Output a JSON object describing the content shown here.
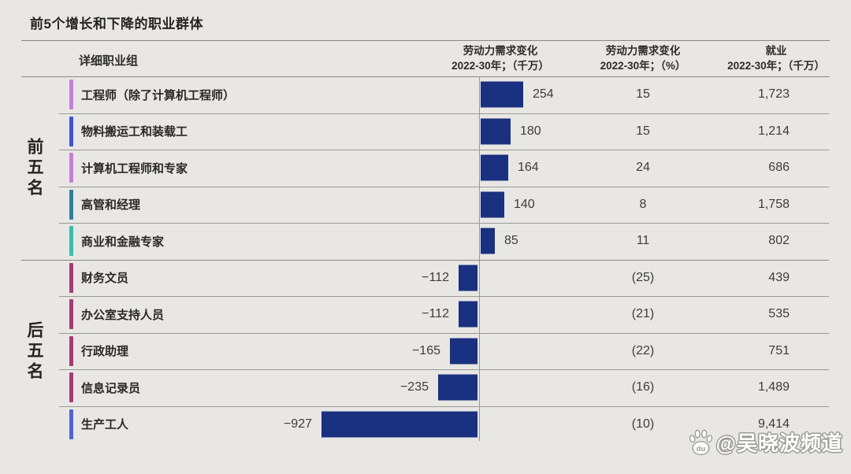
{
  "title": "前5个增长和下降的职业群体",
  "table": {
    "col_headers": {
      "occupation": "详细职业组",
      "change": "劳动力需求变化\n2022-30年；（千万）",
      "pct": "劳动力需求变化\n2022-30年；（%）",
      "employment": "就业\n2022-30年；（千万）"
    },
    "group_labels": {
      "top": "前五名",
      "bottom": "后五名"
    },
    "rows": [
      {
        "label": "工程师（除了计算机工程师）",
        "change": 254,
        "change_label": "254",
        "pct_label": "15",
        "employment_label": "1,723",
        "accent": "#c77edb",
        "group": "top"
      },
      {
        "label": "物料搬运工和装载工",
        "change": 180,
        "change_label": "180",
        "pct_label": "15",
        "employment_label": "1,214",
        "accent": "#3d55d6",
        "group": "top"
      },
      {
        "label": "计算机工程师和专家",
        "change": 164,
        "change_label": "164",
        "pct_label": "24",
        "employment_label": "686",
        "accent": "#c77edb",
        "group": "top"
      },
      {
        "label": "高管和经理",
        "change": 140,
        "change_label": "140",
        "pct_label": "8",
        "employment_label": "1,758",
        "accent": "#2f7fa3",
        "group": "top"
      },
      {
        "label": "商业和金融专家",
        "change": 85,
        "change_label": "85",
        "pct_label": "11",
        "employment_label": "802",
        "accent": "#36beb1",
        "group": "top"
      },
      {
        "label": "财务文员",
        "change": -112,
        "change_label": "−112",
        "pct_label": "(25)",
        "employment_label": "439",
        "accent": "#a93a74",
        "group": "bottom"
      },
      {
        "label": "办公室支持人员",
        "change": -112,
        "change_label": "−112",
        "pct_label": "(21)",
        "employment_label": "535",
        "accent": "#a93a74",
        "group": "bottom"
      },
      {
        "label": "行政助理",
        "change": -165,
        "change_label": "−165",
        "pct_label": "(22)",
        "employment_label": "751",
        "accent": "#a93a74",
        "group": "bottom"
      },
      {
        "label": "信息记录员",
        "change": -235,
        "change_label": "−235",
        "pct_label": "(16)",
        "employment_label": "1,489",
        "accent": "#a93a74",
        "group": "bottom"
      },
      {
        "label": "生产工人",
        "change": -927,
        "change_label": "−927",
        "pct_label": "(10)",
        "employment_label": "9,414",
        "accent": "#5064d9",
        "group": "bottom"
      }
    ]
  },
  "watermark": {
    "handle": "@吴晓波频道",
    "icon_label": "du"
  },
  "colors": {
    "background": "#e9e7e4",
    "bar": "#1a3080",
    "line": "#9b9994",
    "strong_line": "#8a8884",
    "text": "#2b2927",
    "number_text": "#3f3d3b"
  },
  "chart_data": {
    "type": "bar",
    "orientation": "horizontal",
    "title": "前5个增长和下降的职业群体",
    "categories": [
      "工程师（除了计算机工程师）",
      "物料搬运工和装载工",
      "计算机工程师和专家",
      "高管和经理",
      "商业和金融专家",
      "财务文员",
      "办公室支持人员",
      "行政助理",
      "信息记录员",
      "生产工人"
    ],
    "groups": {
      "前五名": [
        0,
        4
      ],
      "后五名": [
        5,
        9
      ]
    },
    "series": [
      {
        "name": "劳动力需求变化 2022-30年（千万）",
        "values": [
          254,
          180,
          164,
          140,
          85,
          -112,
          -112,
          -165,
          -235,
          -927
        ]
      },
      {
        "name": "劳动力需求变化 2022-30年（%）",
        "values": [
          15,
          15,
          24,
          8,
          11,
          -25,
          -21,
          -22,
          -16,
          -10
        ]
      },
      {
        "name": "就业 2022-30年（千万）",
        "values": [
          1723,
          1214,
          686,
          1758,
          802,
          439,
          535,
          751,
          1489,
          9414
        ]
      }
    ],
    "bar_color": "#1a3080",
    "axis_zero_shown": true,
    "grid": false,
    "legend": "none"
  }
}
